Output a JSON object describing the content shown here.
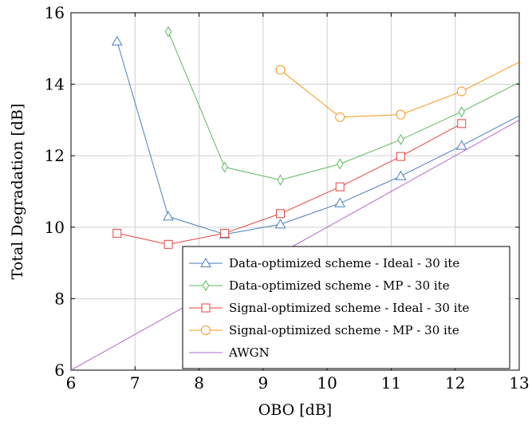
{
  "chart_data": {
    "type": "line",
    "xlabel": "OBO [dB]",
    "ylabel": "Total Degradation [dB]",
    "xlim": [
      6,
      13
    ],
    "ylim": [
      6,
      16
    ],
    "xticks": [
      6,
      7,
      8,
      9,
      10,
      11,
      12,
      13
    ],
    "yticks": [
      6,
      8,
      10,
      12,
      14,
      16
    ],
    "grid": true,
    "legend_position": "bottom-right",
    "series": [
      {
        "name": "Data-optimized scheme - Ideal - 30 ite",
        "color": "#4A7EBB",
        "marker": "triangle",
        "x": [
          6.72,
          7.52,
          8.4,
          9.27,
          10.2,
          11.15,
          12.1,
          13.0
        ],
        "y": [
          15.2,
          10.3,
          9.8,
          10.08,
          10.67,
          11.43,
          12.28,
          13.12
        ],
        "marker_count": 7
      },
      {
        "name": "Data-optimized scheme - MP - 30 ite",
        "color": "#5CB85C",
        "marker": "diamond",
        "x": [
          7.52,
          8.4,
          9.27,
          10.2,
          11.15,
          12.1,
          13.0
        ],
        "y": [
          15.47,
          11.68,
          11.32,
          11.77,
          12.45,
          13.23,
          14.05
        ],
        "marker_count": 6
      },
      {
        "name": "Signal-optimized scheme - Ideal - 30 ite",
        "color": "#E8413C",
        "marker": "square",
        "x": [
          6.72,
          7.52,
          8.4,
          9.27,
          10.2,
          11.15,
          12.1
        ],
        "y": [
          9.83,
          9.52,
          9.83,
          10.38,
          11.13,
          11.98,
          12.9
        ],
        "marker_count": 7
      },
      {
        "name": "Signal-optimized scheme - MP - 30 ite",
        "color": "#F7981D",
        "marker": "circle",
        "x": [
          9.27,
          10.2,
          11.15,
          12.1,
          13.0
        ],
        "y": [
          14.4,
          13.08,
          13.15,
          13.8,
          14.62
        ],
        "marker_count": 4
      },
      {
        "name": "AWGN",
        "color": "#B266CC",
        "marker": "none",
        "x": [
          6.0,
          13.0
        ],
        "y": [
          6.0,
          13.0
        ],
        "marker_count": 0
      }
    ]
  }
}
